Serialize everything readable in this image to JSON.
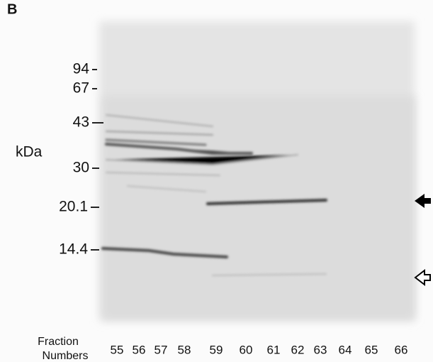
{
  "panel_label": "B",
  "y_axis": {
    "label": "kDa",
    "markers": [
      "94",
      "67",
      "43",
      "30",
      "20.1",
      "14.4"
    ]
  },
  "x_axis": {
    "label_lines": [
      "Fraction",
      "Numbers"
    ],
    "lanes": [
      "55",
      "56",
      "57",
      "58",
      "59",
      "60",
      "61",
      "62",
      "63",
      "64",
      "65",
      "66"
    ]
  }
}
